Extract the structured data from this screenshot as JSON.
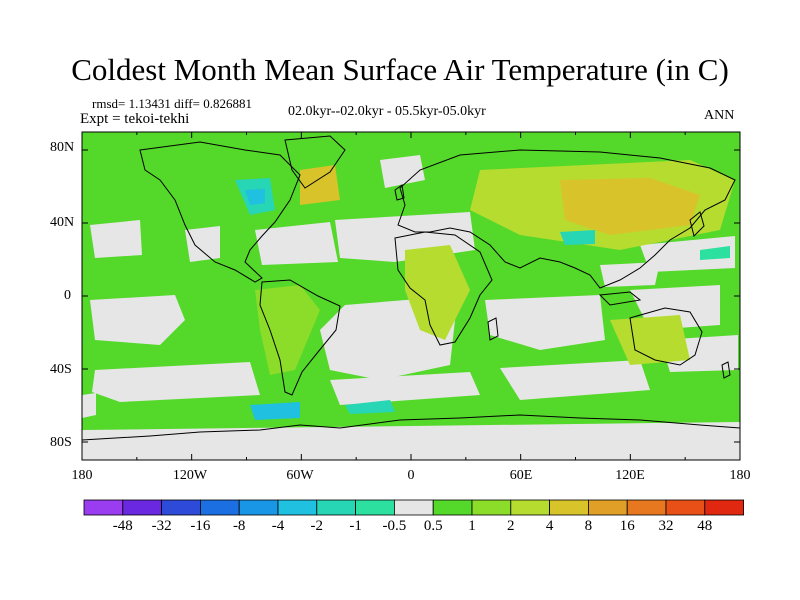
{
  "title": "Coldest Month Mean Surface Air Temperature (in C)",
  "stats": {
    "rmsd_diff": "rmsd= 1.13431 diff= 0.826881",
    "expt": "Expt = tekoi-tekhi",
    "periods": "02.0kyr--02.0kyr - 05.5kyr-05.0kyr",
    "season": "ANN"
  },
  "axes": {
    "lat_labels": [
      "80N",
      "40N",
      "0",
      "40S",
      "80S"
    ],
    "lon_labels": [
      "180",
      "120W",
      "60W",
      "0",
      "60E",
      "120E",
      "180"
    ]
  },
  "colorbar": {
    "labels": [
      "-48",
      "-32",
      "-16",
      "-8",
      "-4",
      "-2",
      "-1",
      "-0.5",
      "0.5",
      "1",
      "2",
      "4",
      "8",
      "16",
      "32",
      "48"
    ],
    "colors": [
      "#9a3cf0",
      "#6a28e0",
      "#2e4ad8",
      "#1c6fe0",
      "#1a96e6",
      "#1fc0e0",
      "#26d6b4",
      "#2ce0a0",
      "#e6e6e6",
      "#54d82a",
      "#8cdc2a",
      "#b6dc30",
      "#d8c42a",
      "#e0a028",
      "#e87820",
      "#e85018",
      "#e02810"
    ]
  }
}
